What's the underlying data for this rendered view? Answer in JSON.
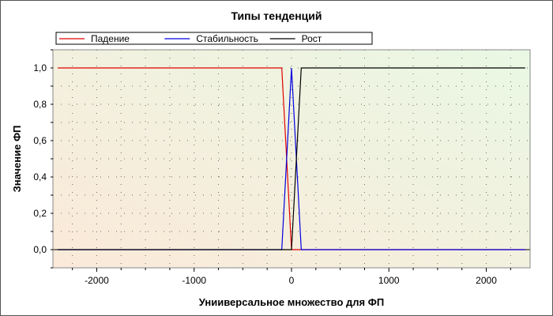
{
  "chart_data": {
    "type": "line",
    "title": "Типы тенденций",
    "xlabel": "Унииверсальное множество для ФП",
    "ylabel": "Значение ФП",
    "xlim": [
      -2450,
      2450
    ],
    "ylim": [
      -0.1,
      1.1
    ],
    "x_ticks": [
      -2000,
      -1000,
      0,
      1000,
      2000
    ],
    "x_tick_labels": [
      "-2000",
      "-1000",
      "0",
      "1000",
      "2000"
    ],
    "y_ticks": [
      0,
      0.2,
      0.4,
      0.6,
      0.8,
      1.0
    ],
    "y_tick_labels": [
      "0,0",
      "0,2",
      "0,4",
      "0,6",
      "0,8",
      "1,0"
    ],
    "grid": true,
    "legend_position": "top",
    "series": [
      {
        "name": "Падение",
        "color": "#e00000",
        "x": [
          -2400,
          -100,
          0,
          2400
        ],
        "y": [
          1,
          1,
          0,
          0
        ]
      },
      {
        "name": "Стабильность",
        "color": "#0000e0",
        "x": [
          -2400,
          -100,
          0,
          100,
          2400
        ],
        "y": [
          0,
          0,
          1,
          0,
          0
        ]
      },
      {
        "name": "Рост",
        "color": "#000000",
        "x": [
          -2400,
          0,
          100,
          2400
        ],
        "y": [
          0,
          0,
          1,
          1
        ]
      }
    ],
    "background_gradient": [
      "#fbe9d9",
      "#e9f8e4"
    ]
  }
}
